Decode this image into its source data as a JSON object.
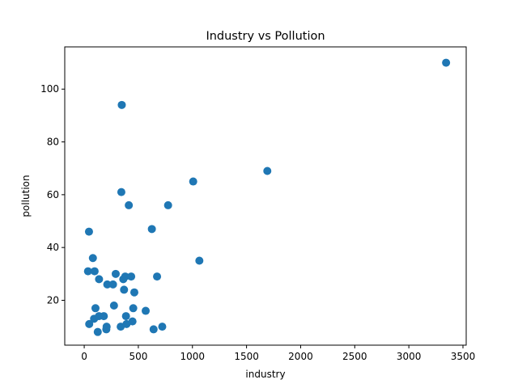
{
  "chart_data": {
    "type": "scatter",
    "title": "Industry vs Pollution",
    "xlabel": "industry",
    "ylabel": "pollution",
    "xlim": [
      -180,
      3530
    ],
    "ylim": [
      3,
      116
    ],
    "xticks": [
      0,
      500,
      1000,
      1500,
      2000,
      2500,
      3000,
      3500
    ],
    "yticks": [
      20,
      40,
      60,
      80,
      100
    ],
    "grid": false,
    "color": "#1f77b4",
    "points": [
      {
        "x": 35,
        "y": 31
      },
      {
        "x": 44,
        "y": 46
      },
      {
        "x": 46,
        "y": 11
      },
      {
        "x": 80,
        "y": 36
      },
      {
        "x": 91,
        "y": 13
      },
      {
        "x": 96,
        "y": 31
      },
      {
        "x": 104,
        "y": 17
      },
      {
        "x": 125,
        "y": 8
      },
      {
        "x": 136,
        "y": 14
      },
      {
        "x": 137,
        "y": 28
      },
      {
        "x": 181,
        "y": 14
      },
      {
        "x": 204,
        "y": 9
      },
      {
        "x": 207,
        "y": 10
      },
      {
        "x": 213,
        "y": 26
      },
      {
        "x": 266,
        "y": 26
      },
      {
        "x": 275,
        "y": 18
      },
      {
        "x": 291,
        "y": 30
      },
      {
        "x": 337,
        "y": 10
      },
      {
        "x": 343,
        "y": 61
      },
      {
        "x": 347,
        "y": 94
      },
      {
        "x": 361,
        "y": 28
      },
      {
        "x": 368,
        "y": 24
      },
      {
        "x": 379,
        "y": 29
      },
      {
        "x": 386,
        "y": 14
      },
      {
        "x": 391,
        "y": 11
      },
      {
        "x": 412,
        "y": 56
      },
      {
        "x": 434,
        "y": 29
      },
      {
        "x": 446,
        "y": 12
      },
      {
        "x": 453,
        "y": 17
      },
      {
        "x": 463,
        "y": 23
      },
      {
        "x": 568,
        "y": 16
      },
      {
        "x": 625,
        "y": 47
      },
      {
        "x": 641,
        "y": 9
      },
      {
        "x": 673,
        "y": 29
      },
      {
        "x": 721,
        "y": 10
      },
      {
        "x": 775,
        "y": 56
      },
      {
        "x": 1007,
        "y": 65
      },
      {
        "x": 1064,
        "y": 35
      },
      {
        "x": 1692,
        "y": 69
      },
      {
        "x": 3344,
        "y": 110
      }
    ]
  }
}
